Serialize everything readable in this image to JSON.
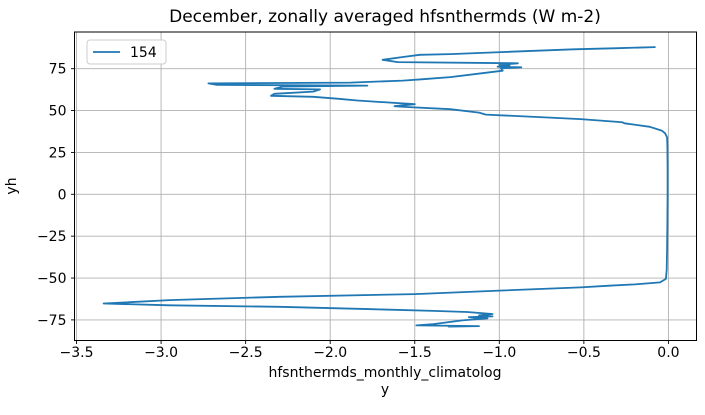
{
  "figure": {
    "background": "#ffffff"
  },
  "colors": {
    "line": "#1f77b4",
    "grid": "#b0b0b0",
    "spine": "#000000",
    "text": "#000000",
    "legend_border": "#cccccc"
  },
  "chart_data": {
    "type": "line",
    "title": "December, zonally averaged hfsnthermds (W m-2)",
    "xlabel_lines": [
      "hfsnthermds_monthly_climatolog",
      "y"
    ],
    "ylabel": "yh",
    "xlim": [
      -3.512,
      0.166
    ],
    "ylim": [
      -87.3,
      96.9
    ],
    "x_ticks": [
      -3.5,
      -3.0,
      -2.5,
      -2.0,
      -1.5,
      -1.0,
      -0.5,
      0.0
    ],
    "x_tick_labels": [
      "−3.5",
      "−3.0",
      "−2.5",
      "−2.0",
      "−1.5",
      "−1.0",
      "−0.5",
      "0.0"
    ],
    "y_ticks": [
      -75,
      -50,
      -25,
      0,
      25,
      50,
      75
    ],
    "y_tick_labels": [
      "−75",
      "−50",
      "−25",
      "0",
      "25",
      "50",
      "75"
    ],
    "grid": true,
    "legend": {
      "position": "upper left",
      "entries": [
        {
          "label": "154",
          "color": "#1f77b4"
        }
      ]
    },
    "series": [
      {
        "name": "154",
        "color": "#1f77b4",
        "points_format": "[hfsnthermds_value, yh_latitude]",
        "points": [
          [
            -0.08,
            87.9
          ],
          [
            -0.3,
            87.2
          ],
          [
            -0.56,
            86.6
          ],
          [
            -0.99,
            84.9
          ],
          [
            -1.29,
            83.7
          ],
          [
            -1.47,
            83.3
          ],
          [
            -1.57,
            82.0
          ],
          [
            -1.69,
            80.3
          ],
          [
            -1.6,
            78.9
          ],
          [
            -0.89,
            78.2
          ],
          [
            -1.0,
            77.3
          ],
          [
            -0.94,
            76.8
          ],
          [
            -1.01,
            76.2
          ],
          [
            -0.87,
            75.8
          ],
          [
            -0.99,
            75.2
          ],
          [
            -0.98,
            73.8
          ],
          [
            -1.1,
            72.3
          ],
          [
            -1.29,
            70.0
          ],
          [
            -1.45,
            68.7
          ],
          [
            -1.57,
            67.9
          ],
          [
            -1.88,
            66.7
          ],
          [
            -2.72,
            66.2
          ],
          [
            -2.67,
            65.3
          ],
          [
            -1.78,
            64.9
          ],
          [
            -2.28,
            64.3
          ],
          [
            -2.33,
            63.0
          ],
          [
            -2.06,
            62.6
          ],
          [
            -2.1,
            61.3
          ],
          [
            -2.33,
            60.0
          ],
          [
            -2.35,
            58.8
          ],
          [
            -2.1,
            58.2
          ],
          [
            -1.95,
            57.0
          ],
          [
            -1.84,
            56.0
          ],
          [
            -1.5,
            53.8
          ],
          [
            -1.62,
            52.6
          ],
          [
            -1.55,
            52.1
          ],
          [
            -1.29,
            50.8
          ],
          [
            -1.12,
            48.8
          ],
          [
            -1.08,
            47.6
          ],
          [
            -0.73,
            45.9
          ],
          [
            -0.52,
            44.9
          ],
          [
            -0.3,
            43.2
          ],
          [
            -0.27,
            42.9
          ],
          [
            -0.26,
            42.4
          ],
          [
            -0.11,
            40.3
          ],
          [
            -0.04,
            38.0
          ],
          [
            -0.02,
            36.5
          ],
          [
            -0.008,
            34.0
          ],
          [
            -0.006,
            28.0
          ],
          [
            -0.005,
            15.0
          ],
          [
            -0.005,
            0.0
          ],
          [
            -0.006,
            -15.0
          ],
          [
            -0.008,
            -32.0
          ],
          [
            -0.01,
            -45.0
          ],
          [
            -0.015,
            -50.5
          ],
          [
            -0.05,
            -52.6
          ],
          [
            -0.2,
            -53.8
          ],
          [
            -0.35,
            -54.6
          ],
          [
            -0.52,
            -55.6
          ],
          [
            -1.0,
            -57.5
          ],
          [
            -1.5,
            -59.6
          ],
          [
            -2.3,
            -61.2
          ],
          [
            -2.95,
            -63.2
          ],
          [
            -3.34,
            -65.2
          ],
          [
            -2.95,
            -66.3
          ],
          [
            -2.3,
            -67.2
          ],
          [
            -1.75,
            -68.6
          ],
          [
            -1.39,
            -69.6
          ],
          [
            -1.19,
            -70.3
          ],
          [
            -1.04,
            -71.5
          ],
          [
            -1.12,
            -72.3
          ],
          [
            -1.04,
            -72.9
          ],
          [
            -1.18,
            -73.4
          ],
          [
            -1.07,
            -74.1
          ],
          [
            -1.22,
            -75.3
          ],
          [
            -1.31,
            -76.5
          ],
          [
            -1.39,
            -77.5
          ],
          [
            -1.49,
            -78.3
          ],
          [
            -1.12,
            -78.7
          ],
          [
            -1.3,
            -79.0
          ]
        ]
      }
    ]
  }
}
